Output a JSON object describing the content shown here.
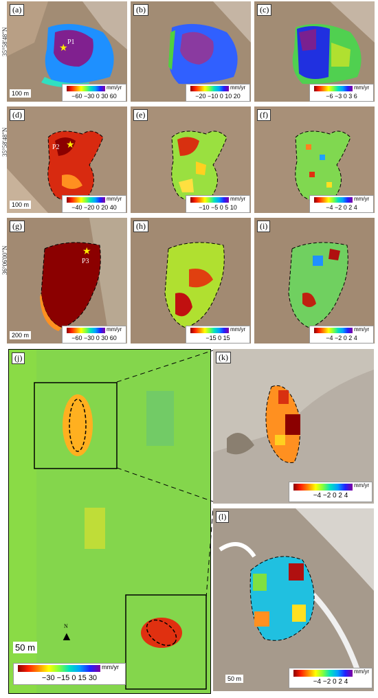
{
  "lat_labels": {
    "row1": "35°58'48\"N",
    "row2": "35°58'48\"N",
    "row3": "36°06'00\"N"
  },
  "panels": {
    "a": {
      "label": "(a)",
      "ticks": "−60 −30  0  30  60",
      "unit": "mm/yr",
      "point": "P1",
      "scale": "100 m"
    },
    "b": {
      "label": "(b)",
      "ticks": "−20 −10  0  10  20",
      "unit": "mm/yr"
    },
    "c": {
      "label": "(c)",
      "ticks": "−6  −3  0  3  6",
      "unit": "mm/yr"
    },
    "d": {
      "label": "(d)",
      "ticks": "−40 −20  0  20  40",
      "unit": "mm/yr",
      "point": "P2",
      "scale": "100 m"
    },
    "e": {
      "label": "(e)",
      "ticks": "−10 −5  0  5  10",
      "unit": "mm/yr"
    },
    "f": {
      "label": "(f)",
      "ticks": "−4 −2  0  2  4",
      "unit": "mm/yr"
    },
    "g": {
      "label": "(g)",
      "ticks": "−60 −30  0  30  60",
      "unit": "mm/yr",
      "point": "P3",
      "scale": "200 m"
    },
    "h": {
      "label": "(h)",
      "ticks": "−15    0    15",
      "unit": "mm/yr"
    },
    "i": {
      "label": "(i)",
      "ticks": "−4 −2  0  2  4",
      "unit": "mm/yr"
    },
    "j": {
      "label": "(j)",
      "ticks": "−30  −15   0   15   30",
      "unit": "mm/yr",
      "scale": "50 m",
      "north": "N"
    },
    "k": {
      "label": "(k)",
      "ticks": "−4  −2   0   2   4",
      "unit": "mm/yr"
    },
    "l": {
      "label": "(l)",
      "ticks": "−4  −2   0   2   4",
      "unit": "mm/yr",
      "scale": "50 m"
    }
  },
  "colors": {
    "terrain": "#a08c76",
    "green": "#7ddc4a",
    "red": "#d82a10",
    "purple": "#7a1a90",
    "blue": "#2060ff"
  }
}
